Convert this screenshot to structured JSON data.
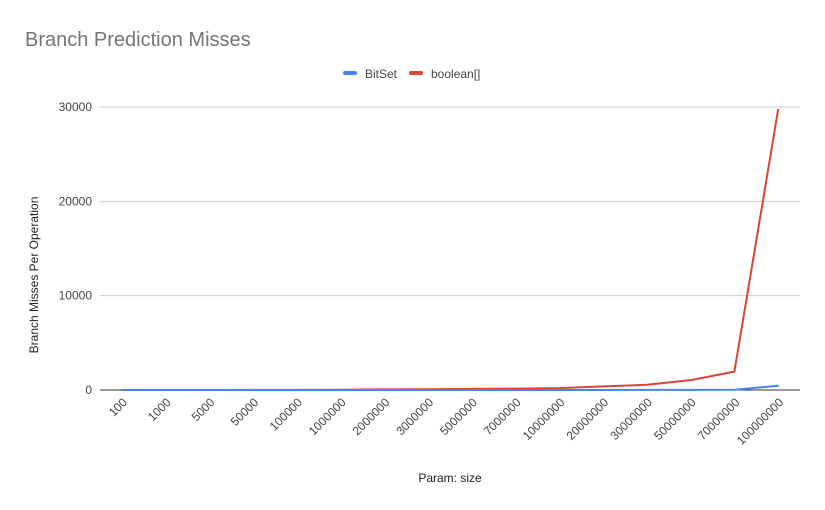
{
  "chart_data": {
    "type": "line",
    "title": "Branch Prediction Misses",
    "xlabel": "Param: size",
    "ylabel": "Branch Misses Per Operation",
    "categories": [
      "100",
      "1000",
      "5000",
      "50000",
      "100000",
      "1000000",
      "2000000",
      "3000000",
      "5000000",
      "7000000",
      "10000000",
      "20000000",
      "30000000",
      "50000000",
      "70000000",
      "100000000"
    ],
    "series": [
      {
        "name": "BitSet",
        "color": "#4285f4",
        "values": [
          0,
          0,
          0,
          0,
          0,
          0,
          1,
          1,
          2,
          2,
          3,
          5,
          8,
          12,
          20,
          450
        ]
      },
      {
        "name": "boolean[]",
        "color": "#db4437",
        "values": [
          0,
          1,
          3,
          8,
          15,
          30,
          60,
          80,
          120,
          150,
          200,
          380,
          550,
          1050,
          1950,
          29700
        ]
      }
    ],
    "ylim": [
      0,
      30000
    ],
    "yticks": [
      0,
      10000,
      20000,
      30000
    ],
    "grid": true,
    "legend_position": "top"
  }
}
